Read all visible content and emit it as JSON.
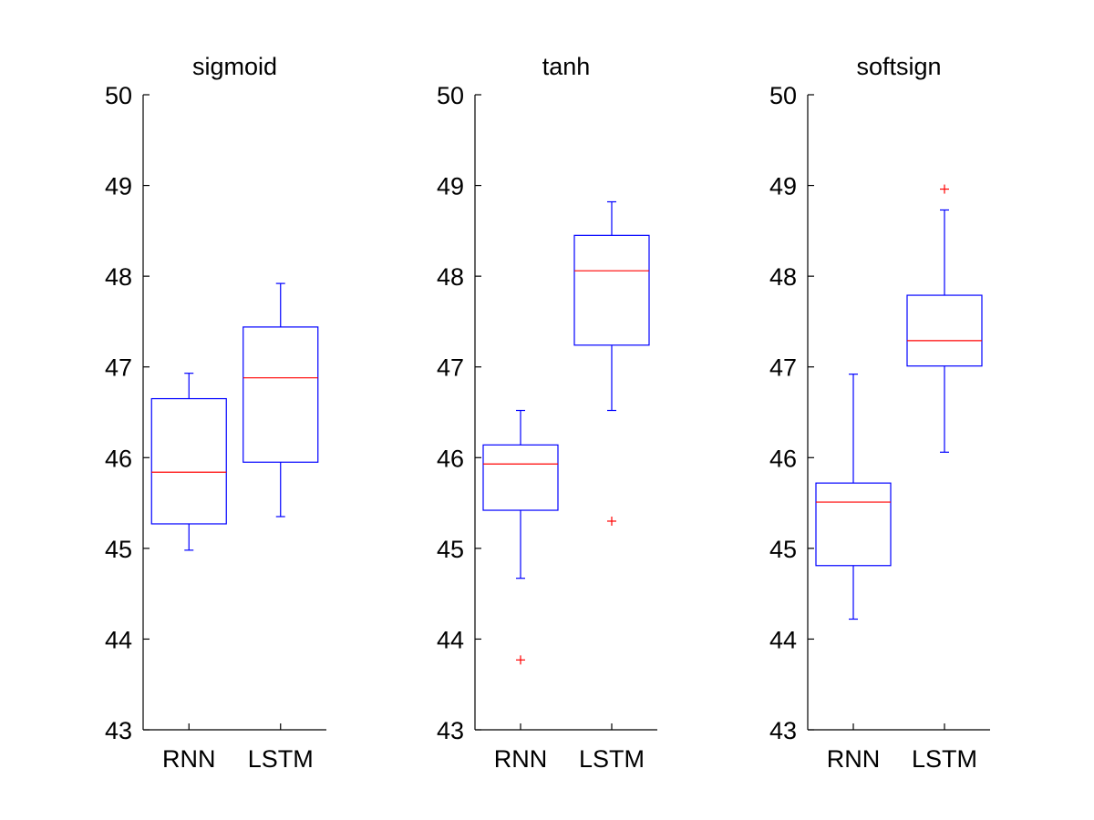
{
  "chart_data": [
    {
      "type": "box",
      "title": "sigmoid",
      "categories": [
        "RNN",
        "LSTM"
      ],
      "ylim": [
        43,
        50
      ],
      "yticks": [
        "43",
        "44",
        "45",
        "46",
        "47",
        "48",
        "49",
        "50"
      ],
      "boxes": [
        {
          "category": "RNN",
          "whisker_low": 44.98,
          "q1": 45.27,
          "median": 45.84,
          "q3": 46.65,
          "whisker_high": 46.93,
          "outliers": []
        },
        {
          "category": "LSTM",
          "whisker_low": 45.35,
          "q1": 45.95,
          "median": 46.88,
          "q3": 47.44,
          "whisker_high": 47.92,
          "outliers": []
        }
      ]
    },
    {
      "type": "box",
      "title": "tanh",
      "categories": [
        "RNN",
        "LSTM"
      ],
      "ylim": [
        43,
        50
      ],
      "yticks": [
        "43",
        "44",
        "45",
        "46",
        "47",
        "48",
        "49",
        "50"
      ],
      "boxes": [
        {
          "category": "RNN",
          "whisker_low": 44.67,
          "q1": 45.42,
          "median": 45.93,
          "q3": 46.14,
          "whisker_high": 46.52,
          "outliers": [
            43.77
          ]
        },
        {
          "category": "LSTM",
          "whisker_low": 46.52,
          "q1": 47.24,
          "median": 48.06,
          "q3": 48.45,
          "whisker_high": 48.82,
          "outliers": [
            45.3
          ]
        }
      ]
    },
    {
      "type": "box",
      "title": "softsign",
      "categories": [
        "RNN",
        "LSTM"
      ],
      "ylim": [
        43,
        50
      ],
      "yticks": [
        "43",
        "44",
        "45",
        "46",
        "47",
        "48",
        "49",
        "50"
      ],
      "boxes": [
        {
          "category": "RNN",
          "whisker_low": 44.22,
          "q1": 44.81,
          "median": 45.51,
          "q3": 45.72,
          "whisker_high": 46.92,
          "outliers": []
        },
        {
          "category": "LSTM",
          "whisker_low": 46.06,
          "q1": 47.01,
          "median": 47.29,
          "q3": 47.79,
          "whisker_high": 48.73,
          "outliers": [
            48.96
          ]
        }
      ]
    }
  ],
  "colors": {
    "box": "#0000ff",
    "median": "#ff0000",
    "outlier": "#ff0000",
    "axis": "#000000"
  }
}
